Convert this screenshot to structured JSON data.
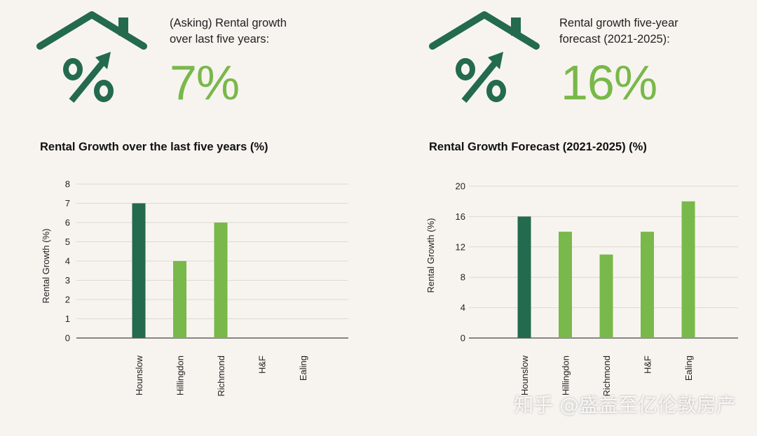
{
  "left": {
    "stat_label": "(Asking) Rental growth over last five years:",
    "stat_value": "7%",
    "chart_title": "Rental Growth over the last five years (%)"
  },
  "right": {
    "stat_label": "Rental growth five-year forecast (2021-2025):",
    "stat_value": "16%",
    "chart_title": "Rental Growth Forecast (2021-2025) (%)"
  },
  "icons": {
    "house_percent": "house-percent-growth-icon"
  },
  "colors": {
    "dark_green": "#236a4e",
    "light_green": "#79b84a",
    "background": "#f7f4ef"
  },
  "watermark": "知乎 @盛益至亿伦敦房产",
  "chart_data": [
    {
      "type": "bar",
      "title": "Rental Growth over the last five years (%)",
      "xlabel": "",
      "ylabel": "Rental Growth (%)",
      "categories": [
        "Hounslow",
        "Hillingdon",
        "Richmond",
        "H&F",
        "Ealing"
      ],
      "values": [
        7,
        4,
        6,
        0,
        0
      ],
      "bar_colors": [
        "#236a4e",
        "#79b84a",
        "#79b84a",
        "#79b84a",
        "#79b84a"
      ],
      "ylim": [
        0,
        8
      ],
      "yticks": [
        "0",
        "1",
        "2",
        "3",
        "4",
        "5",
        "6",
        "7",
        "8"
      ],
      "grid": true
    },
    {
      "type": "bar",
      "title": "Rental Growth Forecast (2021-2025) (%)",
      "xlabel": "",
      "ylabel": "Rental Growth (%)",
      "categories": [
        "Hounslow",
        "Hillingdon",
        "Richmond",
        "H&F",
        "Ealing"
      ],
      "values": [
        16,
        14,
        11,
        14,
        18
      ],
      "bar_colors": [
        "#236a4e",
        "#79b84a",
        "#79b84a",
        "#79b84a",
        "#79b84a"
      ],
      "ylim": [
        0,
        20
      ],
      "yticks": [
        "0",
        "4",
        "8",
        "12",
        "16",
        "20"
      ],
      "grid": true
    }
  ]
}
